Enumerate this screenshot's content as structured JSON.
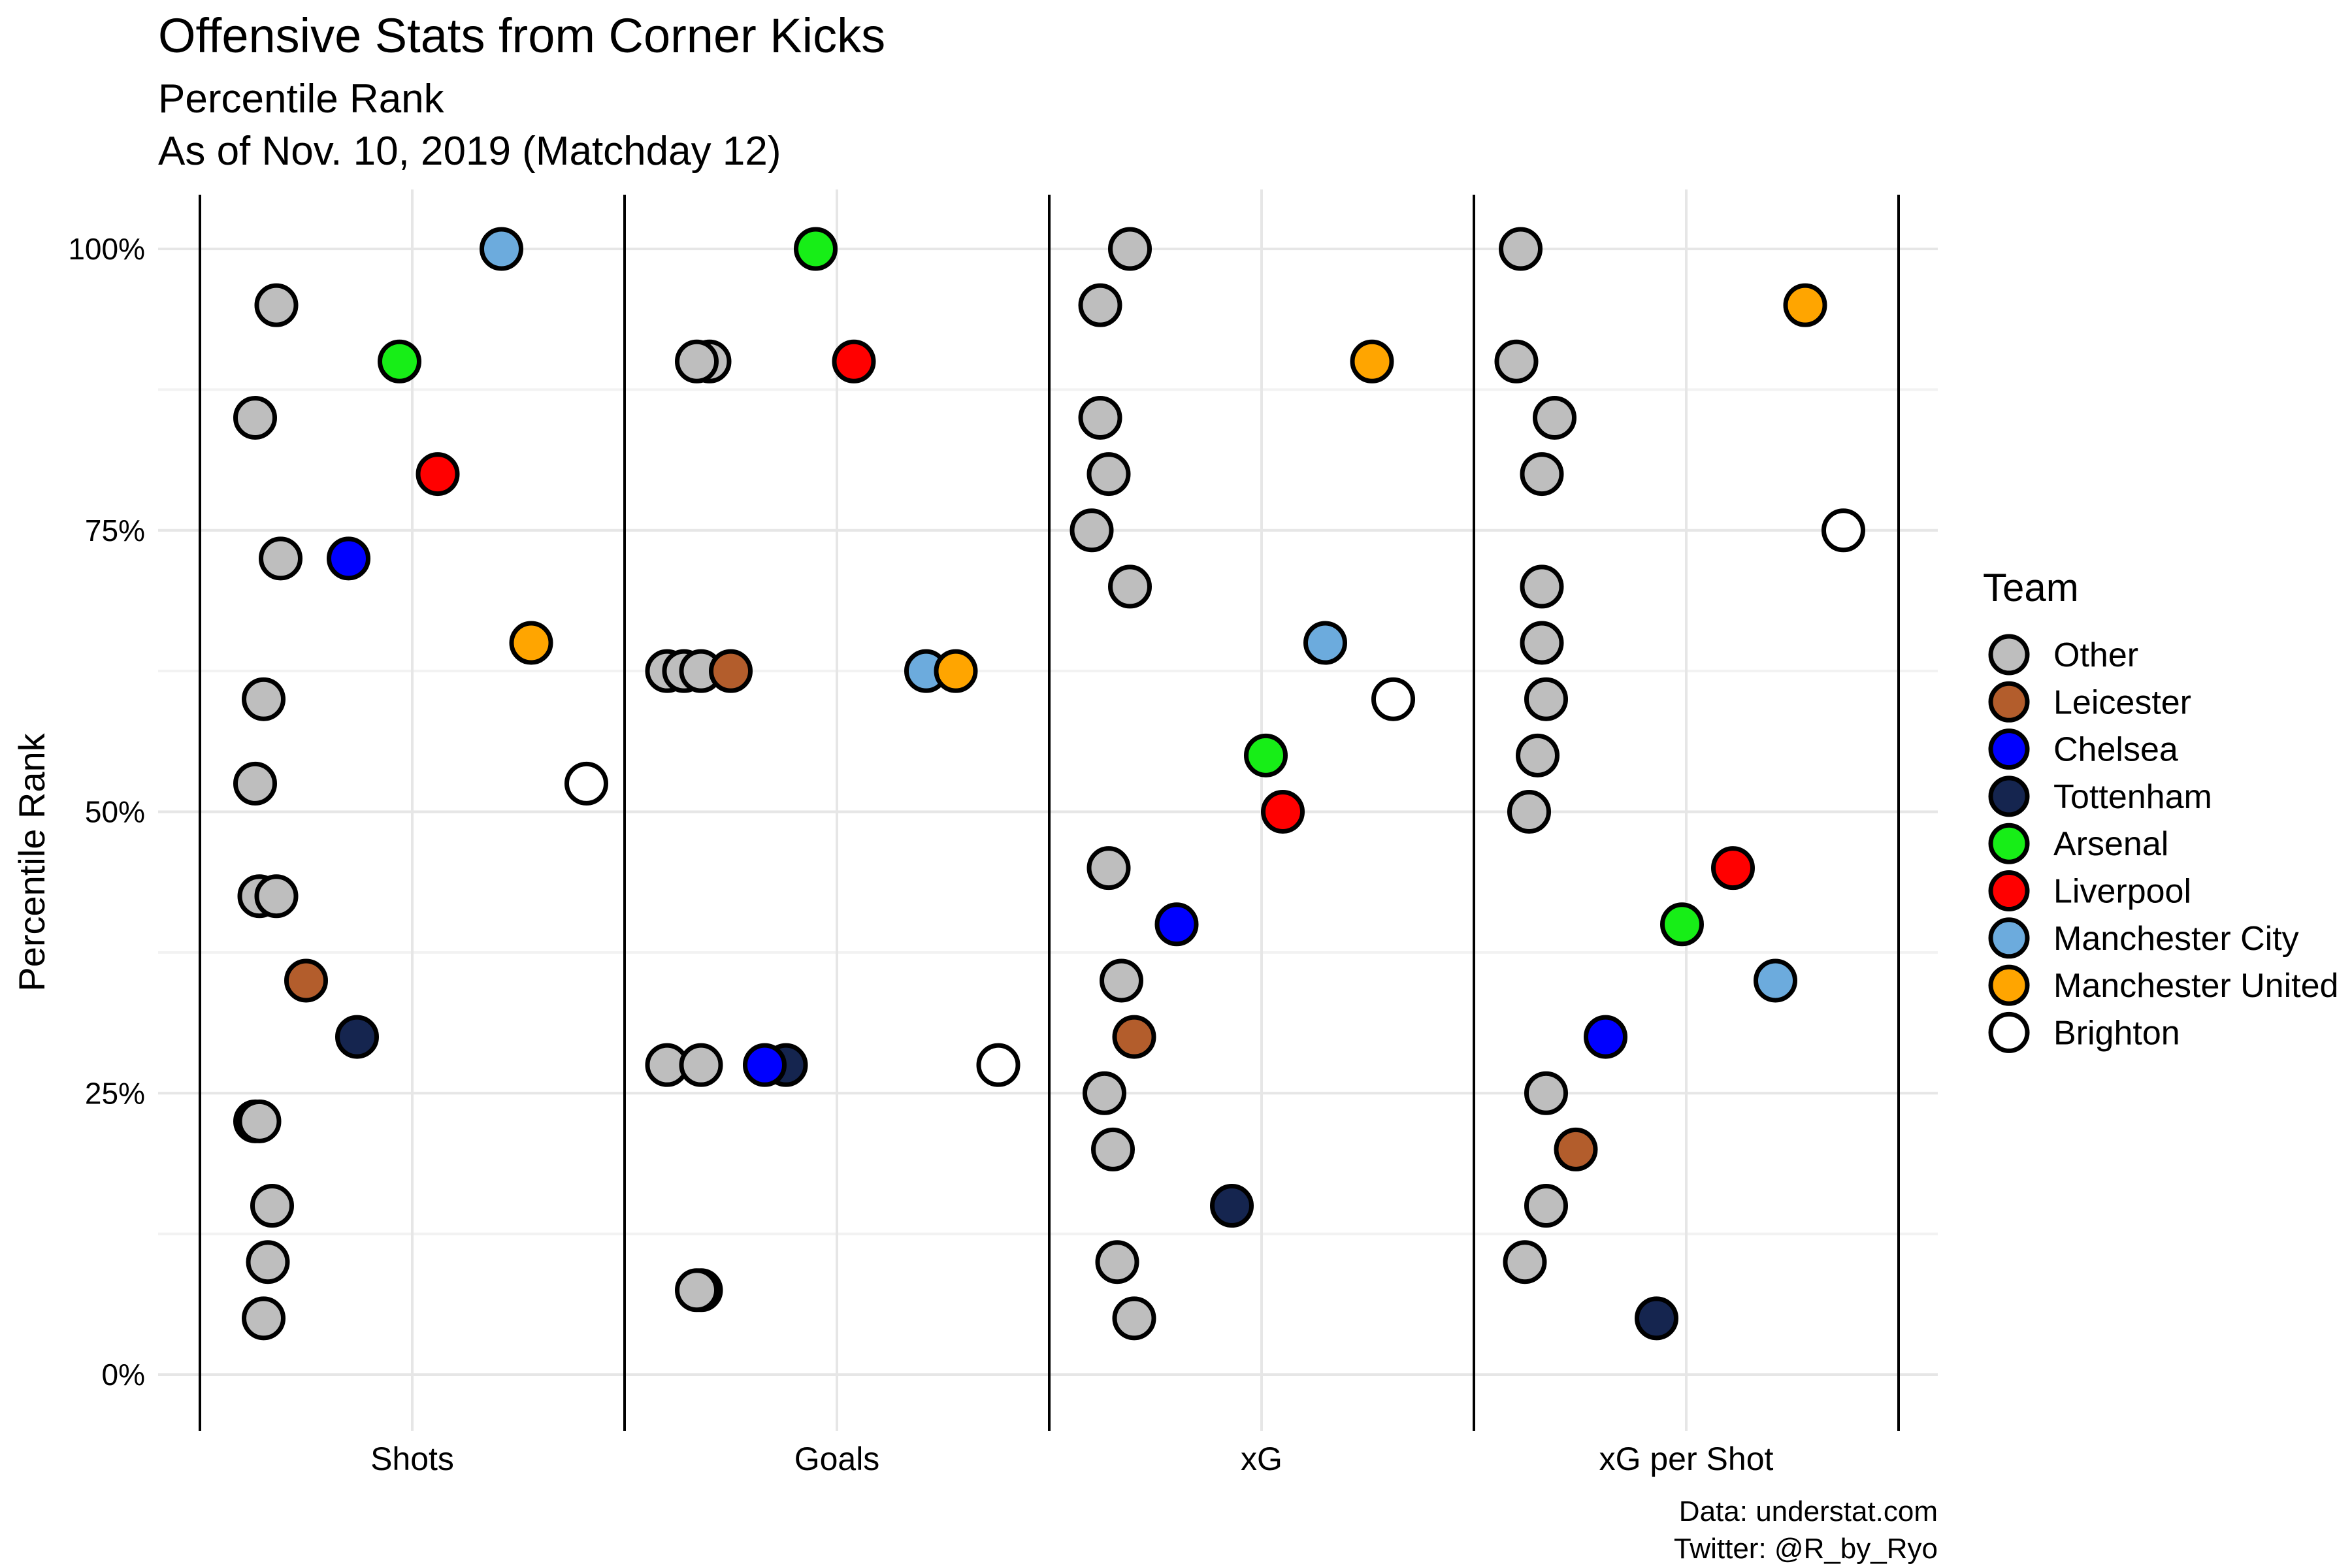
{
  "chart_data": {
    "type": "scatter",
    "title": "Offensive Stats from Corner Kicks",
    "subtitle_line1": "Percentile Rank",
    "subtitle_line2": "As of Nov. 10, 2019 (Matchday 12)",
    "ylabel": "Percentile Rank",
    "xlabel": "",
    "ylim": [
      0,
      100
    ],
    "y_ticks": [
      {
        "value": 0,
        "label": "0%"
      },
      {
        "value": 25,
        "label": "25%"
      },
      {
        "value": 50,
        "label": "50%"
      },
      {
        "value": 75,
        "label": "75%"
      },
      {
        "value": 100,
        "label": "100%"
      }
    ],
    "grid": true,
    "categories": [
      "Shots",
      "Goals",
      "xG",
      "xG per Shot"
    ],
    "legend": {
      "title": "Team",
      "placement": "right",
      "entries": [
        {
          "team": "Other",
          "color": "#BEBEBE"
        },
        {
          "team": "Leicester",
          "color": "#B35D2C"
        },
        {
          "team": "Chelsea",
          "color": "#0000FF"
        },
        {
          "team": "Tottenham",
          "color": "#15254F"
        },
        {
          "team": "Arsenal",
          "color": "#17EE17"
        },
        {
          "team": "Liverpool",
          "color": "#FF0000"
        },
        {
          "team": "Manchester City",
          "color": "#6CABDD"
        },
        {
          "team": "Manchester United",
          "color": "#FFA500"
        },
        {
          "team": "Brighton",
          "color": "#FFFFFF"
        }
      ]
    },
    "points": [
      {
        "category": "Shots",
        "team": "Manchester City",
        "y": 100,
        "jitter": 0.21
      },
      {
        "category": "Shots",
        "team": "Other",
        "y": 95,
        "jitter": -0.32
      },
      {
        "category": "Shots",
        "team": "Arsenal",
        "y": 90,
        "jitter": -0.03
      },
      {
        "category": "Shots",
        "team": "Other",
        "y": 85,
        "jitter": -0.37
      },
      {
        "category": "Shots",
        "team": "Liverpool",
        "y": 80,
        "jitter": 0.06
      },
      {
        "category": "Shots",
        "team": "Chelsea",
        "y": 72.5,
        "jitter": -0.15
      },
      {
        "category": "Shots",
        "team": "Other",
        "y": 72.5,
        "jitter": -0.31
      },
      {
        "category": "Shots",
        "team": "Manchester United",
        "y": 65,
        "jitter": 0.28
      },
      {
        "category": "Shots",
        "team": "Other",
        "y": 60,
        "jitter": -0.35
      },
      {
        "category": "Shots",
        "team": "Other",
        "y": 52.5,
        "jitter": -0.37
      },
      {
        "category": "Shots",
        "team": "Brighton",
        "y": 52.5,
        "jitter": 0.41
      },
      {
        "category": "Shots",
        "team": "Other",
        "y": 42.5,
        "jitter": -0.36
      },
      {
        "category": "Shots",
        "team": "Other",
        "y": 42.5,
        "jitter": -0.32
      },
      {
        "category": "Shots",
        "team": "Leicester",
        "y": 35,
        "jitter": -0.25
      },
      {
        "category": "Shots",
        "team": "Tottenham",
        "y": 30,
        "jitter": -0.13
      },
      {
        "category": "Shots",
        "team": "Other",
        "y": 22.5,
        "jitter": -0.37
      },
      {
        "category": "Shots",
        "team": "Other",
        "y": 22.5,
        "jitter": -0.36
      },
      {
        "category": "Shots",
        "team": "Other",
        "y": 15,
        "jitter": -0.33
      },
      {
        "category": "Shots",
        "team": "Other",
        "y": 10,
        "jitter": -0.34
      },
      {
        "category": "Shots",
        "team": "Other",
        "y": 5,
        "jitter": -0.35
      },
      {
        "category": "Goals",
        "team": "Arsenal",
        "y": 100,
        "jitter": -0.05
      },
      {
        "category": "Goals",
        "team": "Other",
        "y": 90,
        "jitter": -0.3
      },
      {
        "category": "Goals",
        "team": "Other",
        "y": 90,
        "jitter": -0.33
      },
      {
        "category": "Goals",
        "team": "Liverpool",
        "y": 90,
        "jitter": 0.04
      },
      {
        "category": "Goals",
        "team": "Other",
        "y": 62.5,
        "jitter": -0.4
      },
      {
        "category": "Goals",
        "team": "Other",
        "y": 62.5,
        "jitter": -0.36
      },
      {
        "category": "Goals",
        "team": "Other",
        "y": 62.5,
        "jitter": -0.32
      },
      {
        "category": "Goals",
        "team": "Leicester",
        "y": 62.5,
        "jitter": -0.25
      },
      {
        "category": "Goals",
        "team": "Manchester City",
        "y": 62.5,
        "jitter": 0.21
      },
      {
        "category": "Goals",
        "team": "Manchester United",
        "y": 62.5,
        "jitter": 0.28
      },
      {
        "category": "Goals",
        "team": "Other",
        "y": 27.5,
        "jitter": -0.4
      },
      {
        "category": "Goals",
        "team": "Other",
        "y": 27.5,
        "jitter": -0.32
      },
      {
        "category": "Goals",
        "team": "Tottenham",
        "y": 27.5,
        "jitter": -0.12
      },
      {
        "category": "Goals",
        "team": "Chelsea",
        "y": 27.5,
        "jitter": -0.17
      },
      {
        "category": "Goals",
        "team": "Brighton",
        "y": 27.5,
        "jitter": 0.38
      },
      {
        "category": "Goals",
        "team": "Other",
        "y": 7.5,
        "jitter": -0.32
      },
      {
        "category": "Goals",
        "team": "Other",
        "y": 7.5,
        "jitter": -0.33
      },
      {
        "category": "xG",
        "team": "Other",
        "y": 100,
        "jitter": -0.31
      },
      {
        "category": "xG",
        "team": "Other",
        "y": 95,
        "jitter": -0.38
      },
      {
        "category": "xG",
        "team": "Manchester United",
        "y": 90,
        "jitter": 0.26
      },
      {
        "category": "xG",
        "team": "Other",
        "y": 85,
        "jitter": -0.38
      },
      {
        "category": "xG",
        "team": "Other",
        "y": 80,
        "jitter": -0.36
      },
      {
        "category": "xG",
        "team": "Other",
        "y": 75,
        "jitter": -0.4
      },
      {
        "category": "xG",
        "team": "Other",
        "y": 70,
        "jitter": -0.31
      },
      {
        "category": "xG",
        "team": "Manchester City",
        "y": 65,
        "jitter": 0.15
      },
      {
        "category": "xG",
        "team": "Brighton",
        "y": 60,
        "jitter": 0.31
      },
      {
        "category": "xG",
        "team": "Arsenal",
        "y": 55,
        "jitter": 0.01
      },
      {
        "category": "xG",
        "team": "Liverpool",
        "y": 50,
        "jitter": 0.05
      },
      {
        "category": "xG",
        "team": "Other",
        "y": 45,
        "jitter": -0.36
      },
      {
        "category": "xG",
        "team": "Chelsea",
        "y": 40,
        "jitter": -0.2
      },
      {
        "category": "xG",
        "team": "Other",
        "y": 35,
        "jitter": -0.33
      },
      {
        "category": "xG",
        "team": "Leicester",
        "y": 30,
        "jitter": -0.3
      },
      {
        "category": "xG",
        "team": "Other",
        "y": 25,
        "jitter": -0.37
      },
      {
        "category": "xG",
        "team": "Other",
        "y": 20,
        "jitter": -0.35
      },
      {
        "category": "xG",
        "team": "Tottenham",
        "y": 15,
        "jitter": -0.07
      },
      {
        "category": "xG",
        "team": "Other",
        "y": 10,
        "jitter": -0.34
      },
      {
        "category": "xG",
        "team": "Other",
        "y": 5,
        "jitter": -0.3
      },
      {
        "category": "xG per Shot",
        "team": "Other",
        "y": 100,
        "jitter": -0.39
      },
      {
        "category": "xG per Shot",
        "team": "Manchester United",
        "y": 95,
        "jitter": 0.28
      },
      {
        "category": "xG per Shot",
        "team": "Other",
        "y": 90,
        "jitter": -0.4
      },
      {
        "category": "xG per Shot",
        "team": "Other",
        "y": 85,
        "jitter": -0.31
      },
      {
        "category": "xG per Shot",
        "team": "Other",
        "y": 80,
        "jitter": -0.34
      },
      {
        "category": "xG per Shot",
        "team": "Brighton",
        "y": 75,
        "jitter": 0.37
      },
      {
        "category": "xG per Shot",
        "team": "Other",
        "y": 70,
        "jitter": -0.34
      },
      {
        "category": "xG per Shot",
        "team": "Other",
        "y": 65,
        "jitter": -0.34
      },
      {
        "category": "xG per Shot",
        "team": "Other",
        "y": 60,
        "jitter": -0.33
      },
      {
        "category": "xG per Shot",
        "team": "Other",
        "y": 55,
        "jitter": -0.35
      },
      {
        "category": "xG per Shot",
        "team": "Other",
        "y": 50,
        "jitter": -0.37
      },
      {
        "category": "xG per Shot",
        "team": "Liverpool",
        "y": 45,
        "jitter": 0.11
      },
      {
        "category": "xG per Shot",
        "team": "Arsenal",
        "y": 40,
        "jitter": -0.01
      },
      {
        "category": "xG per Shot",
        "team": "Manchester City",
        "y": 35,
        "jitter": 0.21
      },
      {
        "category": "xG per Shot",
        "team": "Chelsea",
        "y": 30,
        "jitter": -0.19
      },
      {
        "category": "xG per Shot",
        "team": "Other",
        "y": 25,
        "jitter": -0.33
      },
      {
        "category": "xG per Shot",
        "team": "Leicester",
        "y": 20,
        "jitter": -0.26
      },
      {
        "category": "xG per Shot",
        "team": "Other",
        "y": 15,
        "jitter": -0.33
      },
      {
        "category": "xG per Shot",
        "team": "Tottenham",
        "y": 5,
        "jitter": -0.07
      },
      {
        "category": "xG per Shot",
        "team": "Other",
        "y": 10,
        "jitter": -0.38
      }
    ]
  },
  "caption": {
    "line1": "Data: understat.com",
    "line2": "Twitter: @R_by_Ryo"
  }
}
